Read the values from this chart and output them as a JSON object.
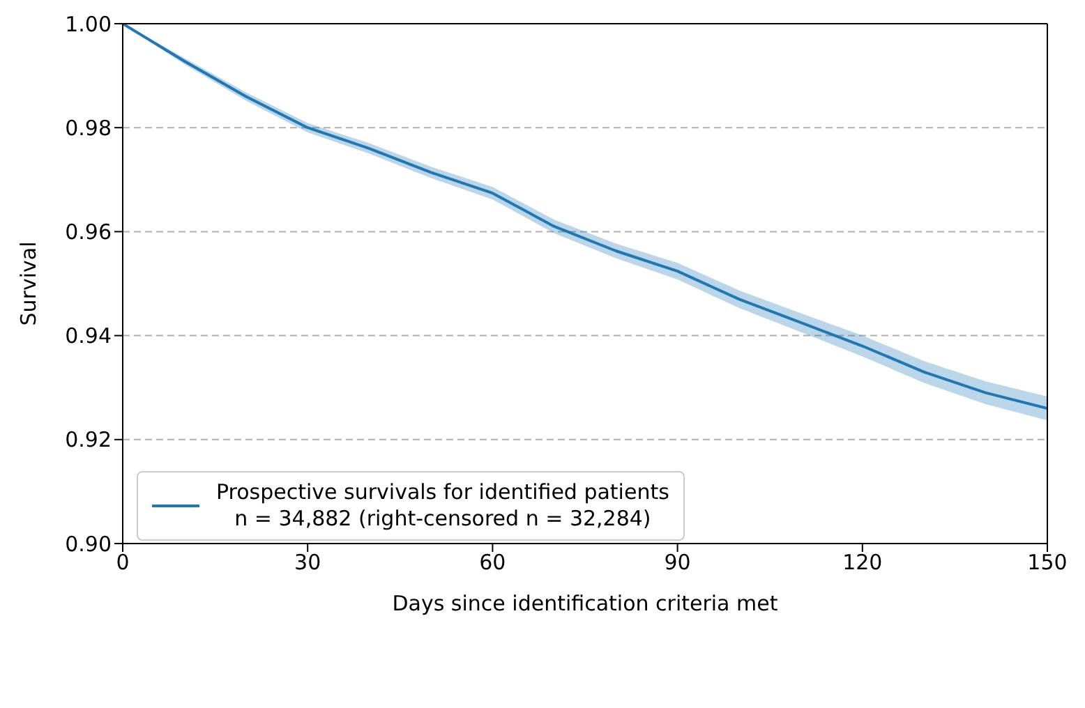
{
  "chart_data": {
    "type": "line",
    "xlabel": "Days since identification criteria met",
    "ylabel": "Survival",
    "x": [
      0,
      10,
      20,
      30,
      40,
      50,
      60,
      70,
      80,
      90,
      100,
      110,
      120,
      130,
      140,
      150
    ],
    "series": [
      {
        "name": "Prospective survivals for identified patients",
        "color": "#1f77b4",
        "values": [
          1.0,
          0.9928,
          0.986,
          0.98,
          0.976,
          0.9714,
          0.9674,
          0.961,
          0.9563,
          0.9524,
          0.947,
          0.9425,
          0.938,
          0.933,
          0.929,
          0.926
        ],
        "lower": [
          1.0,
          0.9922,
          0.9852,
          0.9791,
          0.975,
          0.9703,
          0.9662,
          0.9597,
          0.9549,
          0.9508,
          0.9453,
          0.9407,
          0.936,
          0.9309,
          0.9268,
          0.9237
        ],
        "upper": [
          1.0,
          0.9934,
          0.9868,
          0.9809,
          0.977,
          0.9725,
          0.9686,
          0.9623,
          0.9577,
          0.954,
          0.9487,
          0.9443,
          0.94,
          0.9351,
          0.9312,
          0.9283
        ]
      }
    ],
    "annotations": [
      "n = 34,882 (right-censored n = 32,284)"
    ],
    "xlim": [
      0,
      150
    ],
    "xticks": [
      0,
      30,
      60,
      90,
      120,
      150
    ],
    "ylim": [
      0.9,
      1.0
    ],
    "yticks": [
      {
        "value": 0.9,
        "label": "0.90"
      },
      {
        "value": 0.92,
        "label": "0.92"
      },
      {
        "value": 0.94,
        "label": "0.94"
      },
      {
        "value": 0.96,
        "label": "0.96"
      },
      {
        "value": 0.98,
        "label": "0.98"
      },
      {
        "value": 1.0,
        "label": "1.00"
      }
    ],
    "grid": "y",
    "line_style": "solid",
    "marker": "none",
    "legend": "bottom left"
  }
}
